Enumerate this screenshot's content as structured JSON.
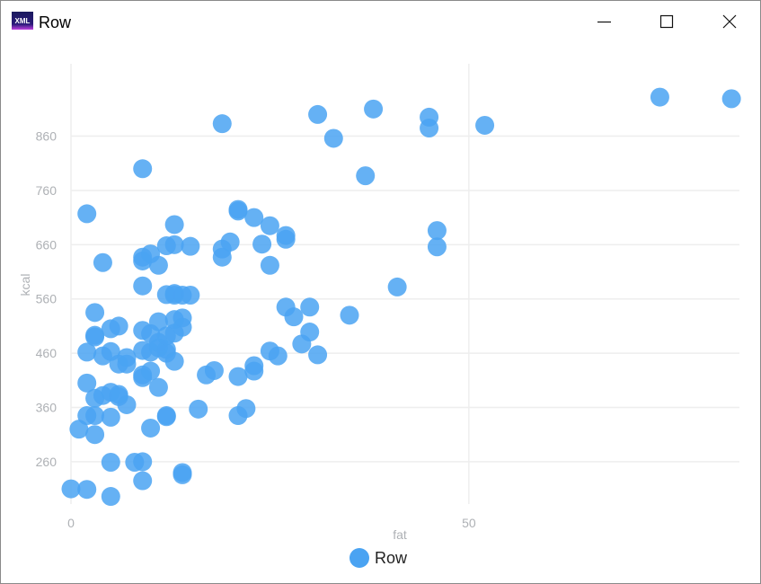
{
  "window": {
    "title": "Row",
    "icon": "xml-icon",
    "icon_text": "XML",
    "controls": [
      "minimize",
      "maximize",
      "close"
    ]
  },
  "colors": {
    "point": "#4aa3f2",
    "grid": "#eeeeee",
    "tick": "#aeb1b5"
  },
  "chart_data": {
    "type": "scatter",
    "xlabel": "fat",
    "ylabel": "kcal",
    "xlim": [
      0,
      84
    ],
    "ylim": [
      182,
      1000
    ],
    "x_ticks": [
      0,
      50
    ],
    "y_ticks": [
      260,
      360,
      460,
      560,
      660,
      760,
      860
    ],
    "grid": true,
    "legend": "bottom-center",
    "series": [
      {
        "name": "Row",
        "points": [
          [
            0,
            210
          ],
          [
            2,
            209
          ],
          [
            5,
            196
          ],
          [
            9,
            225
          ],
          [
            14,
            240
          ],
          [
            14,
            236
          ],
          [
            8,
            259
          ],
          [
            9,
            260
          ],
          [
            5,
            259
          ],
          [
            1,
            320
          ],
          [
            3,
            310
          ],
          [
            2,
            345
          ],
          [
            3,
            345
          ],
          [
            5,
            342
          ],
          [
            10,
            322
          ],
          [
            7,
            365
          ],
          [
            12,
            345
          ],
          [
            12,
            343
          ],
          [
            16,
            357
          ],
          [
            22,
            358
          ],
          [
            21,
            345
          ],
          [
            2,
            405
          ],
          [
            3,
            377
          ],
          [
            4,
            382
          ],
          [
            5,
            388
          ],
          [
            6,
            380
          ],
          [
            6,
            384
          ],
          [
            9,
            415
          ],
          [
            9,
            420
          ],
          [
            10,
            427
          ],
          [
            11,
            397
          ],
          [
            17,
            420
          ],
          [
            18,
            428
          ],
          [
            21,
            417
          ],
          [
            23,
            427
          ],
          [
            23,
            437
          ],
          [
            2,
            462
          ],
          [
            4,
            455
          ],
          [
            5,
            463
          ],
          [
            6,
            440
          ],
          [
            7,
            452
          ],
          [
            7,
            440
          ],
          [
            9,
            465
          ],
          [
            10,
            462
          ],
          [
            11,
            470
          ],
          [
            12,
            460
          ],
          [
            12,
            467
          ],
          [
            13,
            445
          ],
          [
            25,
            464
          ],
          [
            26,
            455
          ],
          [
            29,
            477
          ],
          [
            30,
            499
          ],
          [
            31,
            457
          ],
          [
            3,
            490
          ],
          [
            3,
            493
          ],
          [
            5,
            505
          ],
          [
            6,
            510
          ],
          [
            9,
            502
          ],
          [
            10,
            496
          ],
          [
            11,
            480
          ],
          [
            11,
            518
          ],
          [
            12,
            492
          ],
          [
            13,
            497
          ],
          [
            13,
            522
          ],
          [
            14,
            508
          ],
          [
            14,
            525
          ],
          [
            3,
            535
          ],
          [
            27,
            545
          ],
          [
            28,
            527
          ],
          [
            30,
            545
          ],
          [
            35,
            530
          ],
          [
            9,
            584
          ],
          [
            12,
            568
          ],
          [
            13,
            567
          ],
          [
            13,
            570
          ],
          [
            14,
            567
          ],
          [
            15,
            567
          ],
          [
            41,
            582
          ],
          [
            4,
            627
          ],
          [
            9,
            630
          ],
          [
            9,
            637
          ],
          [
            10,
            643
          ],
          [
            11,
            622
          ],
          [
            12,
            658
          ],
          [
            13,
            660
          ],
          [
            15,
            657
          ],
          [
            19,
            637
          ],
          [
            19,
            652
          ],
          [
            20,
            665
          ],
          [
            24,
            661
          ],
          [
            25,
            622
          ],
          [
            27,
            670
          ],
          [
            27,
            677
          ],
          [
            46,
            656
          ],
          [
            46,
            686
          ],
          [
            2,
            717
          ],
          [
            13,
            697
          ],
          [
            21,
            722
          ],
          [
            21,
            725
          ],
          [
            23,
            710
          ],
          [
            25,
            695
          ],
          [
            9,
            800
          ],
          [
            37,
            787
          ],
          [
            19,
            883
          ],
          [
            33,
            856
          ],
          [
            52,
            880
          ],
          [
            45,
            875
          ],
          [
            31,
            900
          ],
          [
            38,
            910
          ],
          [
            45,
            895
          ],
          [
            74,
            932
          ],
          [
            83,
            929
          ]
        ]
      }
    ]
  }
}
